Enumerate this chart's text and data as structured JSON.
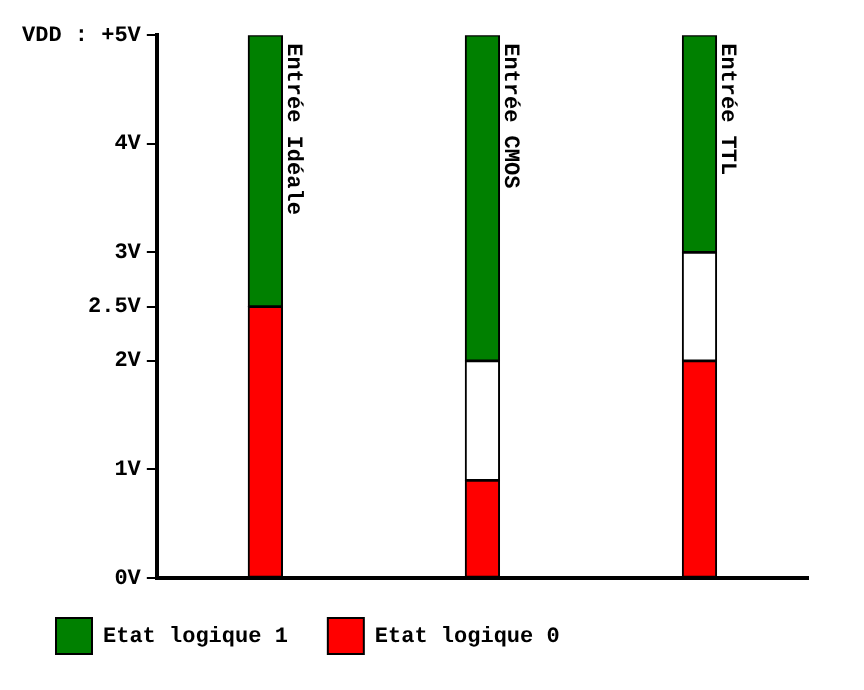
{
  "chart_data": {
    "type": "bar",
    "stacked": true,
    "categories": [
      "Entrée Idéale",
      "Entrée CMOS",
      "Entrée TTL"
    ],
    "series": [
      {
        "name": "Etat logique 0",
        "color": "#ff0000",
        "values": [
          2.5,
          0.9,
          2
        ]
      },
      {
        "color": "#ffffff",
        "values": [
          null,
          1.1,
          1
        ]
      },
      {
        "name": "Etat logique 1",
        "color": "#008000",
        "values": [
          2.5,
          3,
          2
        ]
      }
    ],
    "ylim": [
      0,
      5
    ],
    "yticks": [
      {
        "value": 0,
        "label": "0V"
      },
      {
        "value": 1,
        "label": "1V"
      },
      {
        "value": 2,
        "label": "2V"
      },
      {
        "value": 2.5,
        "label": "2.5V"
      },
      {
        "value": 3,
        "label": "3V"
      },
      {
        "value": 4,
        "label": "4V"
      },
      {
        "value": 5,
        "label": "VDD : +5V"
      }
    ],
    "grid": false,
    "legend": "bottom left"
  }
}
